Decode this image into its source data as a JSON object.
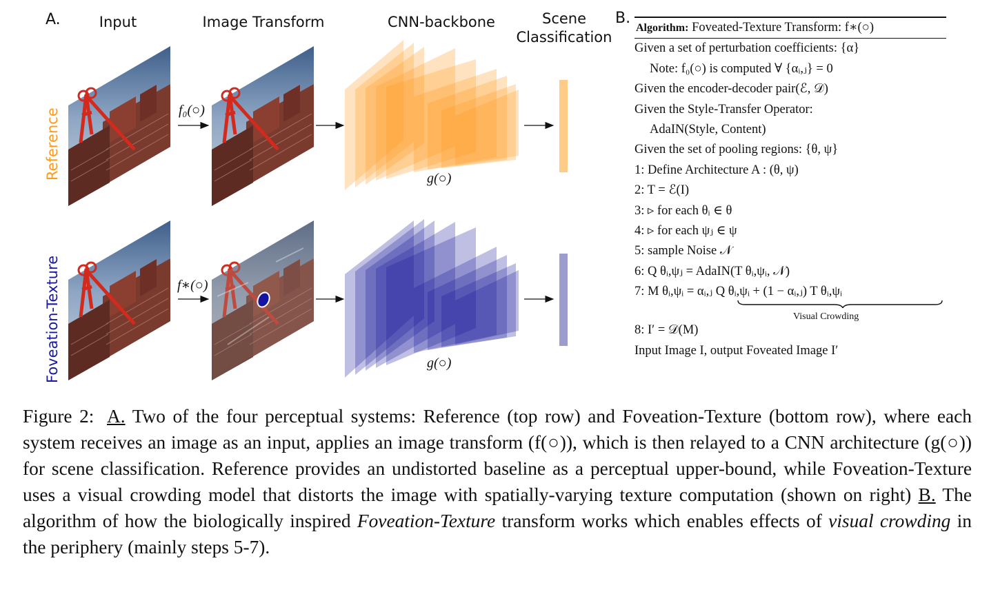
{
  "panel_a": {
    "label": "A.",
    "columns": {
      "input": "Input",
      "transform": "Image Transform",
      "backbone": "CNN-backbone",
      "scene_line1": "Scene",
      "scene_line2": "Classification"
    },
    "rows": {
      "reference": "Reference",
      "foveation": "Foveation-Texture"
    },
    "functions": {
      "f_zero": "f₀(○)",
      "f_star": "f∗(○)",
      "g": "g(○)"
    },
    "colors": {
      "reference": "#ff9a1f",
      "foveation": "#1a1a9a"
    }
  },
  "panel_b": {
    "label": "B.",
    "title_bold": "Algorithm:",
    "title_rest": "Foveated-Texture Transform: f∗(○)",
    "lines": [
      "Given a set of perturbation coefficients: {α}",
      "Note: f₀(○) is computed ∀ {αᵢ,ⱼ} = 0",
      "Given the encoder-decoder pair(ℰ, 𝒟)",
      "Given the Style-Transfer Operator:",
      "AdaIN(Style, Content)",
      "Given the set of pooling regions: {θ, ψ}",
      "1: Define Architecture A : (θ, ψ)",
      "2: T = ℰ(I)",
      "3: ▹ for each θᵢ ∈ θ",
      "4: ▹ for each ψⱼ ∈ ψ",
      "5: sample Noise 𝒩",
      "6: Q θᵢ,ψⱼ = AdaIN(T θᵢ,ψᵢ, 𝒩)",
      "7: M θᵢ,ψᵢ = αᵢ,ⱼ Q θᵢ,ψᵢ + (1 − αᵢ,ⱼ) T θᵢ,ψᵢ",
      "Visual Crowding",
      "8: I′ = 𝒟(M)",
      "Input Image I, output Foveated Image I′"
    ]
  },
  "caption": {
    "fig": "Figure 2:",
    "a_label": "A.",
    "part1": "Two of the four perceptual systems: Reference (top row) and Foveation-Texture (bottom row), where each system receives an image as an input, applies an image transform (f(○)), which is then relayed to a CNN architecture (g(○)) for scene classification. Reference provides an undistorted baseline as a perceptual upper-bound, while Foveation-Texture uses a visual crowding model that distorts the image with spatially-varying texture computation (shown on right)",
    "b_label": "B.",
    "part2": "The algorithm of how the biologically inspired",
    "italic1": "Foveation-Texture",
    "part3": "transform works which enables effects of",
    "italic2": "visual crowding",
    "part4": "in the periphery (mainly steps 5-7)."
  }
}
